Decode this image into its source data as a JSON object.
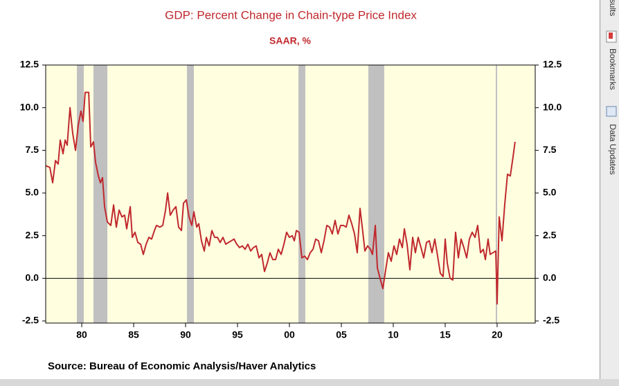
{
  "chart_data": {
    "type": "line",
    "title": "GDP: Percent Change in Chain-type Price Index",
    "subtitle": "SAAR, %",
    "source": "Source:  Bureau of Economic Analysis/Haver Analytics",
    "color": "#c0282d",
    "plot_background": "#ffffe0",
    "shade_color": "#c0c0c0",
    "zero_line": true,
    "right_axis_labels": true,
    "xlim": [
      1976.53,
      2023.67
    ],
    "ylim": [
      -2.5,
      12.5
    ],
    "xticks": [
      {
        "value": 1980,
        "label": "80"
      },
      {
        "value": 1985,
        "label": "85"
      },
      {
        "value": 1990,
        "label": "90"
      },
      {
        "value": 1995,
        "label": "95"
      },
      {
        "value": 2000,
        "label": "00"
      },
      {
        "value": 2005,
        "label": "05"
      },
      {
        "value": 2010,
        "label": "10"
      },
      {
        "value": 2015,
        "label": "15"
      },
      {
        "value": 2020,
        "label": "20"
      }
    ],
    "yticks": [
      12.5,
      {
        "value": 10,
        "label": "10.0"
      },
      7.5,
      {
        "value": 5,
        "label": "5.0"
      },
      2.5,
      {
        "value": 0,
        "label": "0.0"
      },
      -2.5
    ],
    "recessions": [
      [
        1979.53,
        1980.2
      ],
      [
        1981.13,
        1982.47
      ],
      [
        1990.13,
        1990.8
      ],
      [
        2000.87,
        2001.53
      ],
      [
        2007.6,
        2009.13
      ],
      [
        2019.87,
        2020.0
      ]
    ],
    "x": [
      1976.53,
      1976.93,
      1977.2,
      1977.47,
      1977.73,
      1977.93,
      1978.2,
      1978.4,
      1978.6,
      1978.87,
      1979.13,
      1979.4,
      1979.67,
      1979.93,
      1980.13,
      1980.33,
      1980.67,
      1980.87,
      1981.13,
      1981.33,
      1981.6,
      1981.8,
      1982,
      1982.2,
      1982.47,
      1982.8,
      1983.07,
      1983.33,
      1983.6,
      1983.87,
      1984.13,
      1984.33,
      1984.67,
      1984.87,
      1985.13,
      1985.4,
      1985.67,
      1985.93,
      1986.2,
      1986.47,
      1986.73,
      1987,
      1987.2,
      1987.53,
      1987.8,
      1988.07,
      1988.27,
      1988.53,
      1988.8,
      1989.07,
      1989.33,
      1989.6,
      1989.8,
      1990.07,
      1990.33,
      1990.6,
      1990.8,
      1991.07,
      1991.27,
      1991.53,
      1991.8,
      1992,
      1992.27,
      1992.53,
      1992.8,
      1993.07,
      1993.33,
      1993.6,
      1993.87,
      1994.13,
      1994.4,
      1994.67,
      1994.93,
      1995.2,
      1995.47,
      1995.73,
      1996,
      1996.27,
      1996.53,
      1996.8,
      1997.07,
      1997.33,
      1997.6,
      1997.87,
      1998.13,
      1998.4,
      1998.67,
      1998.93,
      1999.2,
      1999.47,
      1999.73,
      2000,
      2000.27,
      2000.47,
      2000.67,
      2000.93,
      2001.2,
      2001.47,
      2001.73,
      2002,
      2002.27,
      2002.53,
      2002.8,
      2003.07,
      2003.33,
      2003.6,
      2003.87,
      2004.13,
      2004.4,
      2004.67,
      2004.93,
      2005.2,
      2005.47,
      2005.73,
      2006,
      2006.27,
      2006.53,
      2006.8,
      2007.07,
      2007.27,
      2007.53,
      2007.8,
      2008,
      2008.27,
      2008.47,
      2008.73,
      2009,
      2009.27,
      2009.53,
      2009.8,
      2010.07,
      2010.33,
      2010.6,
      2010.87,
      2011.07,
      2011.33,
      2011.6,
      2011.87,
      2012.13,
      2012.4,
      2012.67,
      2012.93,
      2013.2,
      2013.47,
      2013.73,
      2014,
      2014.27,
      2014.53,
      2014.8,
      2015,
      2015.2,
      2015.47,
      2015.73,
      2016,
      2016.27,
      2016.53,
      2016.8,
      2017.07,
      2017.33,
      2017.6,
      2017.87,
      2018.13,
      2018.4,
      2018.67,
      2018.87,
      2019.13,
      2019.33,
      2019.6,
      2019.87,
      2020,
      2020.2,
      2020.47,
      2020.73,
      2021,
      2021.27,
      2021.53,
      2021.73
    ],
    "values": [
      6.6,
      6.5,
      5.6,
      6.9,
      6.7,
      8.1,
      7.3,
      8.1,
      7.8,
      10.0,
      8.5,
      7.5,
      9.0,
      9.8,
      9.2,
      10.9,
      10.9,
      7.7,
      8.0,
      6.8,
      6.0,
      5.6,
      5.9,
      4.2,
      3.3,
      3.1,
      4.3,
      3.0,
      4.0,
      3.6,
      3.7,
      2.9,
      4.2,
      2.4,
      2.7,
      2.1,
      2.0,
      1.4,
      2.0,
      2.4,
      2.3,
      2.8,
      3.1,
      3.0,
      3.1,
      4.0,
      5.0,
      3.7,
      4.0,
      4.2,
      3.0,
      2.8,
      4.4,
      4.6,
      3.6,
      3.1,
      3.9,
      3.0,
      3.2,
      2.2,
      1.6,
      2.4,
      1.9,
      2.8,
      2.4,
      2.4,
      2.1,
      2.4,
      2.0,
      2.1,
      2.2,
      2.3,
      2.0,
      1.8,
      1.9,
      1.7,
      2.0,
      1.6,
      1.8,
      1.9,
      1.2,
      1.4,
      0.4,
      0.9,
      1.5,
      1.1,
      1.1,
      1.7,
      1.4,
      2.0,
      2.7,
      2.4,
      2.5,
      2.2,
      2.8,
      2.7,
      1.2,
      1.3,
      1.1,
      1.5,
      1.7,
      2.3,
      2.2,
      1.5,
      2.2,
      3.1,
      3.0,
      2.6,
      3.4,
      2.6,
      3.1,
      3.1,
      3.0,
      3.7,
      3.2,
      2.6,
      1.5,
      4.1,
      2.7,
      1.6,
      1.9,
      1.7,
      1.4,
      3.1,
      0.6,
      0.0,
      -0.6,
      0.5,
      1.5,
      1.0,
      1.9,
      1.4,
      2.3,
      1.8,
      2.9,
      2.0,
      0.5,
      2.4,
      1.5,
      2.4,
      1.8,
      1.2,
      2.1,
      2.2,
      1.5,
      2.3,
      1.3,
      0.3,
      0.1,
      2.3,
      0.9,
      0.0,
      -0.1,
      2.7,
      1.2,
      2.3,
      1.8,
      1.2,
      2.3,
      2.7,
      2.4,
      3.1,
      1.5,
      1.7,
      1.1,
      2.3,
      1.4,
      1.5,
      1.6,
      -1.5,
      3.6,
      2.2,
      4.3,
      6.1,
      6.0,
      7.1,
      8.0
    ]
  },
  "sidebar": {
    "items": [
      "sults",
      "Bookmarks",
      "Data Updates"
    ]
  }
}
